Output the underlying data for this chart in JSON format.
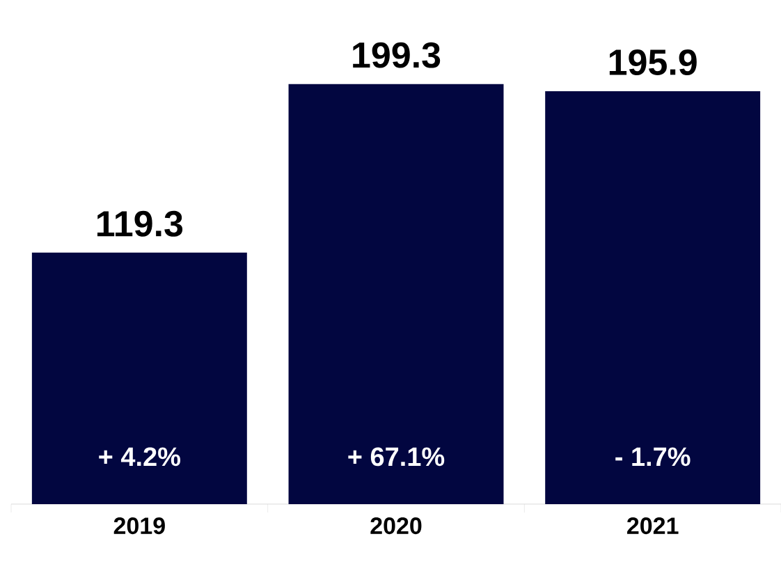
{
  "chart_data": {
    "type": "bar",
    "categories": [
      "2019",
      "2020",
      "2021"
    ],
    "values": [
      119.3,
      199.3,
      195.9
    ],
    "color": "#020640",
    "data_labels": true,
    "annotations": [
      "+ 4.2%",
      "+ 67.1%",
      "- 1.7%"
    ]
  }
}
